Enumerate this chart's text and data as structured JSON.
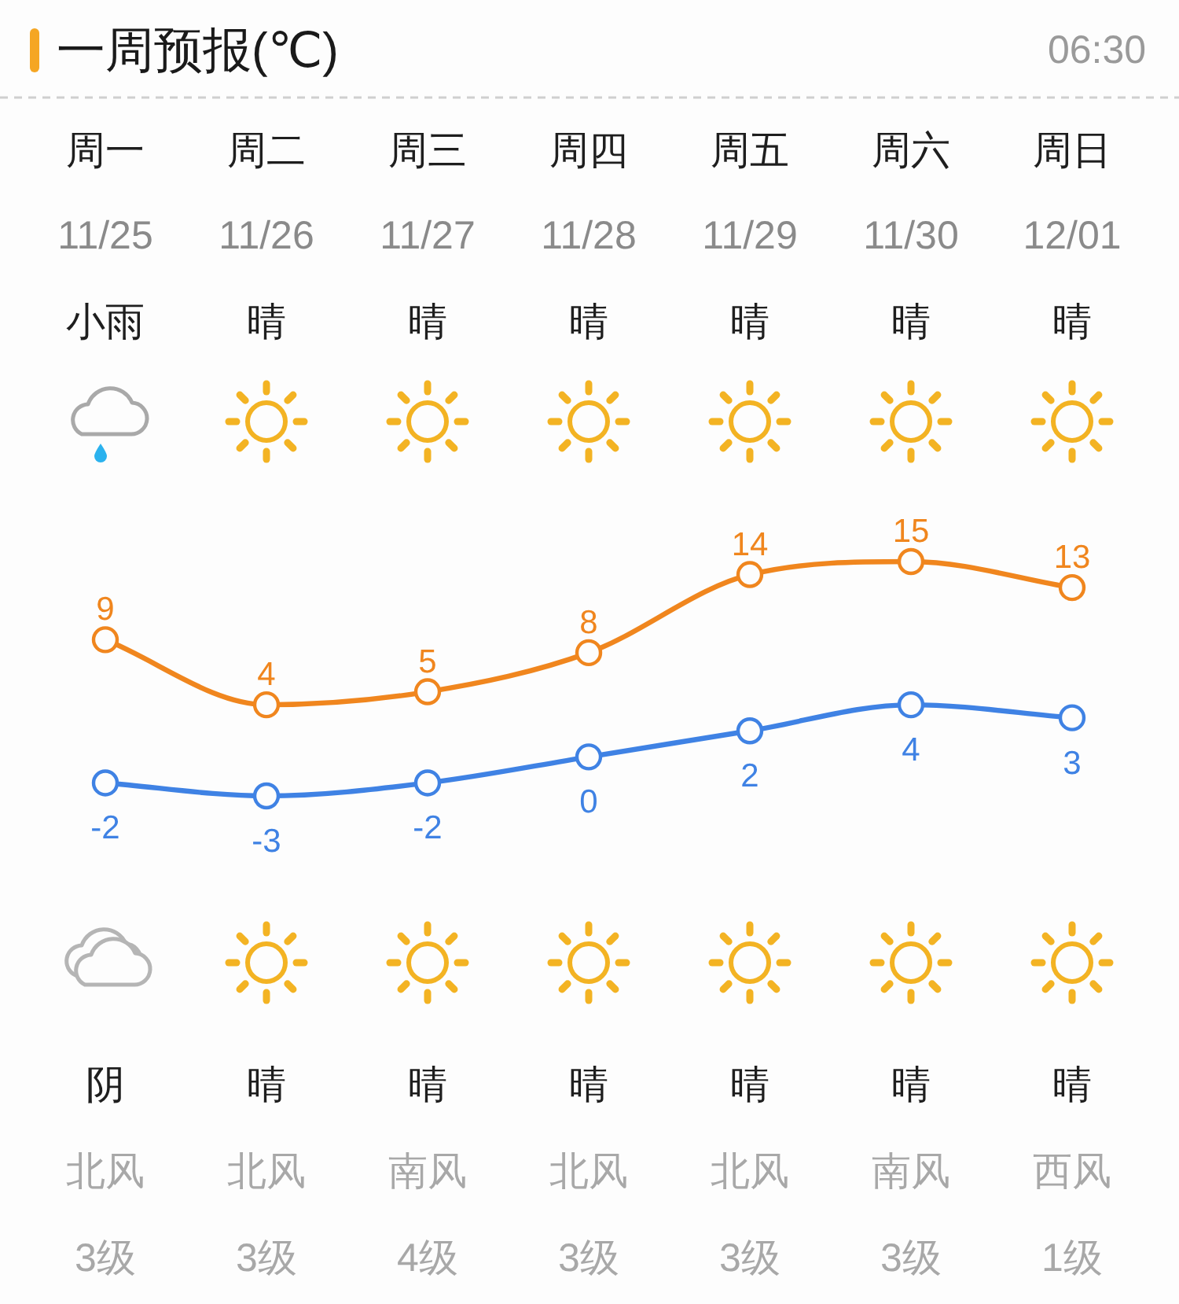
{
  "chart_data": {
    "type": "line",
    "title": "一周预报(℃)",
    "subtitle": "06:30",
    "categories": [
      "周一\n11/25\n小雨",
      "周二\n11/26\n晴",
      "周三\n11/27\n晴",
      "周四\n11/28\n晴",
      "周五\n11/29\n晴",
      "周六\n11/30\n晴",
      "周日\n12/01\n晴"
    ],
    "series": [
      {
        "color": "#f0861e",
        "values": [
          9,
          4,
          5,
          8,
          14,
          15,
          13
        ]
      },
      {
        "color": "#3f82e4",
        "values": [
          -2,
          -3,
          -2,
          0,
          2,
          4,
          3
        ]
      }
    ],
    "marker": "circle",
    "data_labels": true,
    "annotations": [
      "阴",
      "晴",
      "晴",
      "晴",
      "晴",
      "晴",
      "晴",
      "北风",
      "北风",
      "南风",
      "北风",
      "北风",
      "南风",
      "西风",
      "3级",
      "3级",
      "4级",
      "3级",
      "3级",
      "3级",
      "1级"
    ]
  }
}
